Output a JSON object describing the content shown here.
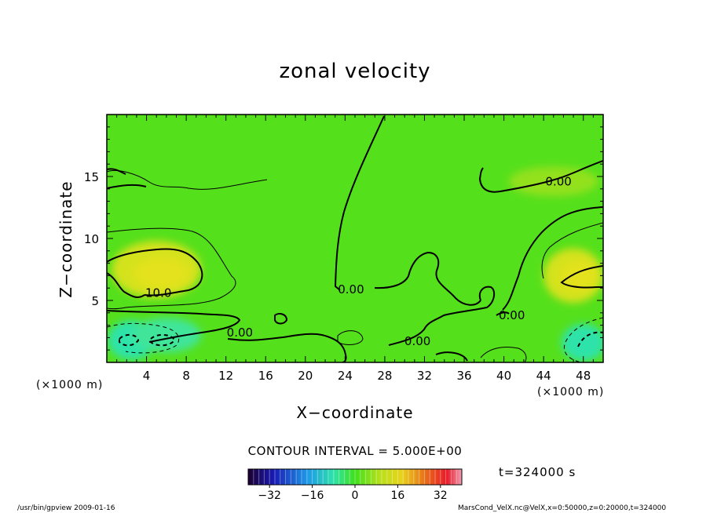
{
  "chart_data": {
    "type": "heatmap",
    "title": "zonal velocity",
    "xlabel": "X−coordinate",
    "ylabel": "Z−coordinate",
    "x_unit": "(×1000 m)",
    "xlim": [
      0,
      50
    ],
    "ylim": [
      0,
      20
    ],
    "xticks": [
      "4",
      "8",
      "12",
      "16",
      "20",
      "24",
      "28",
      "32",
      "36",
      "40",
      "44",
      "48"
    ],
    "yticks": [
      "5",
      "10",
      "15"
    ],
    "contour_interval_label": "CONTOUR INTERVAL = 5.000E+00",
    "time_label": "t=324000 s",
    "colorbar": {
      "range": [
        -40,
        40
      ],
      "ticks": [
        "−32",
        "−16",
        "0",
        "16",
        "32"
      ]
    },
    "contour_labels": [
      {
        "text": "0.00",
        "x": 45.5,
        "y": 14.6
      },
      {
        "text": "10.0",
        "x": 5.2,
        "y": 5.6
      },
      {
        "text": "0.00",
        "x": 24.6,
        "y": 5.9
      },
      {
        "text": "0.00",
        "x": 13.4,
        "y": 2.4
      },
      {
        "text": "0.00",
        "x": 31.3,
        "y": 1.7
      },
      {
        "text": "0.00",
        "x": 40.8,
        "y": 3.8
      }
    ],
    "warm_regions": [
      {
        "x": 5.0,
        "y": 7.5,
        "rx": 4.5,
        "ry": 2.3,
        "color": "#d4e21c"
      },
      {
        "x": 5.5,
        "y": 7.2,
        "rx": 2.8,
        "ry": 1.3,
        "color": "#e3e21a"
      },
      {
        "x": 47.0,
        "y": 7.0,
        "rx": 3.0,
        "ry": 2.2,
        "color": "#d4e21c"
      },
      {
        "x": 47.5,
        "y": 7.0,
        "rx": 1.8,
        "ry": 1.2,
        "color": "#e3e21a"
      },
      {
        "x": 45.0,
        "y": 14.6,
        "rx": 4.5,
        "ry": 1.2,
        "color": "#93e11a"
      }
    ],
    "cold_regions": [
      {
        "x": 2.5,
        "y": 1.8,
        "rx": 2.4,
        "ry": 1.6,
        "color": "#2de3a9"
      },
      {
        "x": 6.0,
        "y": 2.2,
        "rx": 3.5,
        "ry": 1.4,
        "color": "#3fe59a"
      },
      {
        "x": 48.0,
        "y": 1.6,
        "rx": 2.2,
        "ry": 1.5,
        "color": "#2de3a9"
      }
    ]
  },
  "footer": {
    "left": "/usr/bin/gpview   2009-01-16",
    "right": "MarsCond_VelX.nc@VelX,x=0:50000,z=0:20000,t=324000"
  }
}
